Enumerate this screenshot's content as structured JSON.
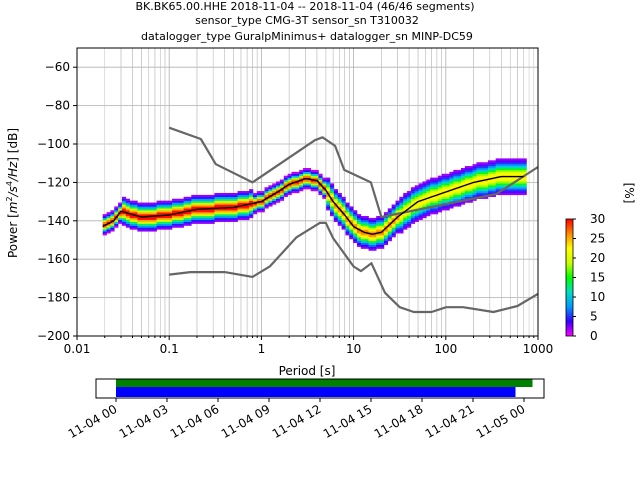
{
  "chart_data": {
    "type": "heatmap",
    "title_lines": [
      "BK.BK65.00.HHE   2018-11-04 -- 2018-11-04  (46/46 segments)",
      "sensor_type CMG-3T sensor_sn T310032",
      "datalogger_type GuralpMinimus+ datalogger_sn MINP-DC59"
    ],
    "xlabel": "Period [s]",
    "ylabel_parts": [
      "Power [",
      "m",
      "2",
      "/s",
      "4",
      "/Hz",
      "] [dB]"
    ],
    "xscale": "log",
    "xlim": [
      0.01,
      1000
    ],
    "ylim": [
      -200,
      -50
    ],
    "grid": true,
    "x_ticks": [
      {
        "value": 0.01,
        "label": "0.01"
      },
      {
        "value": 0.1,
        "label": "0.1"
      },
      {
        "value": 1,
        "label": "1"
      },
      {
        "value": 10,
        "label": "10"
      },
      {
        "value": 100,
        "label": "100"
      },
      {
        "value": 1000,
        "label": "1000"
      }
    ],
    "y_ticks": [
      {
        "value": -200,
        "label": "−200"
      },
      {
        "value": -180,
        "label": "−180"
      },
      {
        "value": -160,
        "label": "−160"
      },
      {
        "value": -140,
        "label": "−140"
      },
      {
        "value": -120,
        "label": "−120"
      },
      {
        "value": -100,
        "label": "−100"
      },
      {
        "value": -80,
        "label": "−80"
      },
      {
        "value": -60,
        "label": "−60"
      }
    ],
    "colorbar": {
      "label": "[%]",
      "range": [
        0,
        30
      ],
      "ticks": [
        {
          "value": 0,
          "label": "0"
        },
        {
          "value": 5,
          "label": "5"
        },
        {
          "value": 10,
          "label": "10"
        },
        {
          "value": 15,
          "label": "15"
        },
        {
          "value": 20,
          "label": "20"
        },
        {
          "value": 25,
          "label": "25"
        },
        {
          "value": 30,
          "label": "30"
        }
      ],
      "colors": [
        "#ff00ff",
        "#3300ff",
        "#0099ff",
        "#00e0c0",
        "#00ff00",
        "#ccff00",
        "#ffff00",
        "#ff8800",
        "#ff0000"
      ]
    },
    "series": [
      {
        "name": "NHNM",
        "color": "#666666",
        "x": [
          0.1,
          0.22,
          0.32,
          0.8,
          3.8,
          4.6,
          6.3,
          7.9,
          15.4,
          20,
          354.8,
          1000
        ],
        "y": [
          -91.5,
          -97.4,
          -110.5,
          -120,
          -98,
          -96.5,
          -101,
          -113.5,
          -120,
          -138,
          -126,
          -112
        ]
      },
      {
        "name": "NLNM",
        "color": "#666666",
        "x": [
          0.1,
          0.17,
          0.4,
          0.8,
          1.24,
          2.4,
          4.3,
          5,
          6,
          10,
          12,
          15.6,
          21.9,
          31.6,
          45,
          70,
          101,
          154,
          328,
          600,
          1000
        ],
        "y": [
          -168,
          -166.7,
          -166.7,
          -169.2,
          -163.7,
          -148.6,
          -141.1,
          -141.1,
          -149,
          -163.8,
          -166.2,
          -162.1,
          -177.5,
          -185,
          -187.5,
          -187.5,
          -185,
          -185,
          -187.5,
          -184.4,
          -178
        ]
      },
      {
        "name": "mode",
        "color": "#000000",
        "x": [
          0.019,
          0.025,
          0.03,
          0.035,
          0.05,
          0.1,
          0.2,
          0.5,
          1,
          1.5,
          2,
          3,
          4,
          5,
          6,
          8,
          10,
          13,
          16,
          20,
          30,
          50,
          100,
          200,
          400,
          700
        ],
        "y": [
          -143,
          -140,
          -135,
          -136,
          -138,
          -137,
          -134,
          -133,
          -130,
          -125,
          -121,
          -118,
          -119,
          -124,
          -130,
          -137,
          -143,
          -146,
          -147,
          -146,
          -138,
          -130,
          -125,
          -120,
          -117,
          -117
        ]
      }
    ],
    "x_markers": [
      0.03,
      0.04,
      0.05,
      0.06,
      0.07,
      0.08,
      0.09,
      0.2,
      0.3,
      0.4,
      0.5,
      0.6,
      0.7,
      0.8,
      0.9,
      2,
      3,
      4,
      5,
      6,
      7,
      8,
      9,
      20,
      30,
      40,
      50,
      60,
      70,
      80,
      90,
      200,
      300,
      400,
      500,
      600,
      700
    ],
    "timeline": {
      "x_ticks": [
        "11-04 00",
        "11-04 03",
        "11-04 06",
        "11-04 09",
        "11-04 12",
        "11-04 15",
        "11-04 18",
        "11-04 21",
        "11-05 00"
      ],
      "bars": [
        {
          "name": "covered",
          "color": "#008000",
          "range_hours": [
            0,
            24.5
          ]
        },
        {
          "name": "used",
          "color": "#0000ff",
          "range_hours": [
            0,
            23.5
          ]
        }
      ]
    }
  }
}
